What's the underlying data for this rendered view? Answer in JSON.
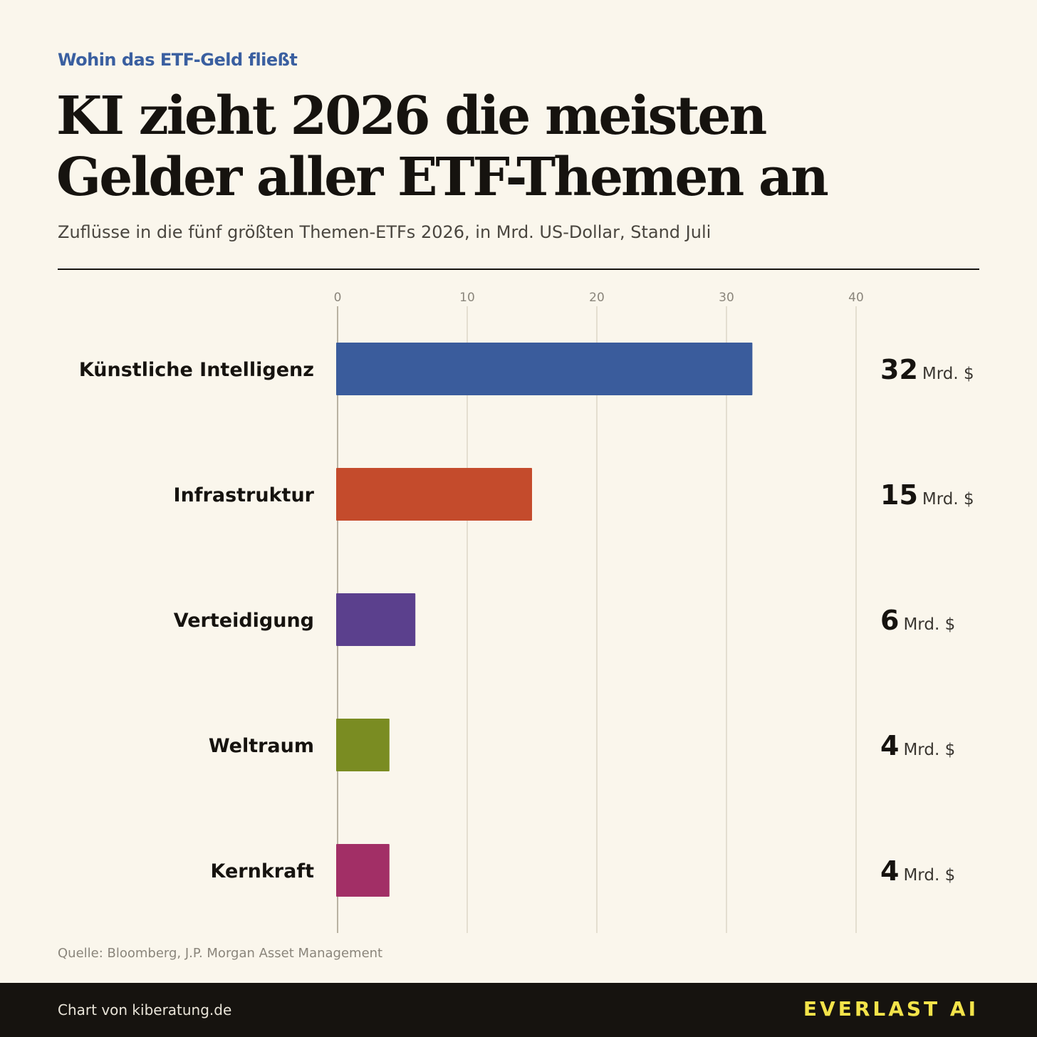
{
  "header": {
    "kicker": "Wohin das ETF-Geld fließt",
    "title_line1": "KI zieht 2026 die meisten",
    "title_line2": "Gelder aller ETF-Themen an",
    "subtitle": "Zuflüsse in die fünf größten Themen-ETFs 2026, in Mrd. US-Dollar, Stand Juli"
  },
  "chart_data": {
    "type": "bar",
    "orientation": "horizontal",
    "categories": [
      "Künstliche Intelligenz",
      "Infrastruktur",
      "Verteidigung",
      "Weltraum",
      "Kernkraft"
    ],
    "values": [
      32,
      15,
      6,
      4,
      4
    ],
    "value_unit": "Mrd. $",
    "xlim": [
      0,
      40
    ],
    "xticks": [
      0,
      10,
      20,
      30,
      40
    ],
    "grid": true,
    "colors": [
      "#3a5c9c",
      "#c44b2c",
      "#5b408d",
      "#7a8c22",
      "#a22f66"
    ]
  },
  "footer": {
    "source": "Quelle: Bloomberg, J.P. Morgan Asset Management",
    "credit": "Chart von kiberatung.de",
    "brand": "EVERLAST AI"
  }
}
